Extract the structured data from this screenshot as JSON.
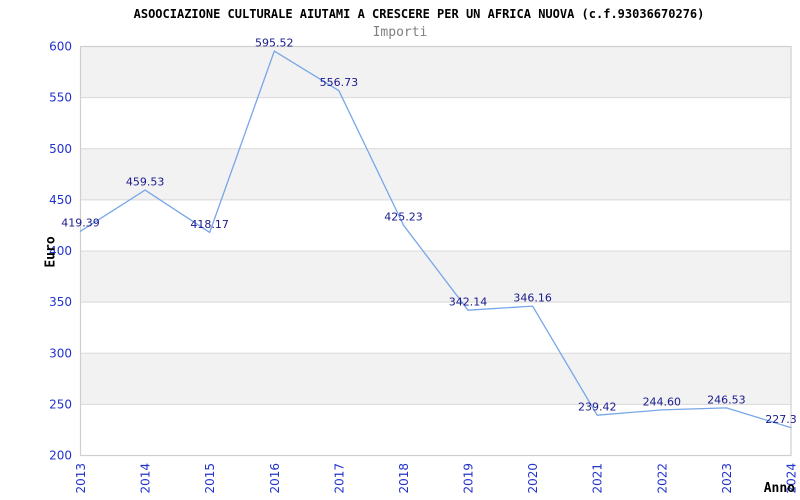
{
  "chart_data": {
    "type": "line",
    "title": "ASOOCIAZIONE CULTURALE AIUTAMI A CRESCERE PER UN AFRICA NUOVA (c.f.93036670276)",
    "subtitle": "Importi",
    "xlabel": "Anno",
    "ylabel": "Euro",
    "categories": [
      "2013",
      "2014",
      "2015",
      "2016",
      "2017",
      "2018",
      "2019",
      "2020",
      "2021",
      "2022",
      "2023",
      "2024"
    ],
    "series": [
      {
        "name": "Importi",
        "values": [
          419.39,
          459.53,
          418.17,
          595.52,
          556.73,
          425.23,
          342.14,
          346.16,
          239.42,
          244.6,
          246.53,
          227.3
        ],
        "point_labels": [
          "419.39",
          "459.53",
          "418.17",
          "595.52",
          "556.73",
          "425.23",
          "342.14",
          "346.16",
          "239.42",
          "244.60",
          "246.53",
          "227.3"
        ]
      }
    ],
    "ylim": [
      200,
      600
    ],
    "yticks": [
      200,
      250,
      300,
      350,
      400,
      450,
      500,
      550,
      600
    ],
    "grid": "horizontal-alternating-bands",
    "legend": "none",
    "colors": {
      "line": "#79a6e8",
      "axis_tick_label": "#2233cc",
      "point_label": "#1a1a8c",
      "band_alt": "#f2f2f2",
      "band_base": "#ffffff",
      "grid_line": "#d9d9d9",
      "plot_border": "#cfcfcf",
      "title": "#000000",
      "subtitle": "#808080",
      "axis_title": "#000000",
      "background": "#ffffff"
    }
  }
}
